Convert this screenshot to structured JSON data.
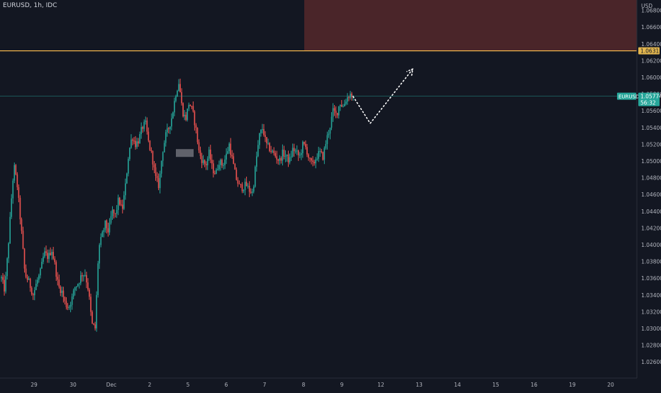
{
  "header": {
    "symbol_title": "EURUSD, 1h, IDC"
  },
  "price_axis": {
    "currency": "USD",
    "ticks": [
      "1.06800",
      "1.06600",
      "1.06400",
      "1.06200",
      "1.06000",
      "1.05800",
      "1.05600",
      "1.05400",
      "1.05200",
      "1.05000",
      "1.04800",
      "1.04600",
      "1.04400",
      "1.04200",
      "1.04000",
      "1.03800",
      "1.03600",
      "1.03400",
      "1.03200",
      "1.03000",
      "1.02800",
      "1.02600"
    ]
  },
  "time_axis": {
    "ticks": [
      "29",
      "30",
      "Dec",
      "2",
      "5",
      "6",
      "7",
      "8",
      "9",
      "12",
      "13",
      "14",
      "15",
      "16",
      "19",
      "20"
    ]
  },
  "markers": {
    "resistance_label": "1.06317",
    "current_symbol": "EURUSD",
    "current_price": "1.05774",
    "countdown": "56:32"
  },
  "colors": {
    "background": "#131722",
    "up_candle": "#26a69a",
    "down_candle": "#ef5350",
    "resistance_line": "#f0b44c",
    "supply_zone": "#4a2529",
    "price_label_bg": "#26a69a",
    "projection": "#ffffff",
    "axis_text": "#b2b5be"
  },
  "chart_data": {
    "type": "candlestick",
    "title": "EURUSD, 1h, IDC",
    "ylim": [
      1.025,
      1.07
    ],
    "resistance_level": 1.06317,
    "current_price": 1.05774,
    "supply_zone": {
      "low": 1.06317,
      "high": 1.07,
      "from_date": "Dec 8"
    },
    "consolidation_box": {
      "low": 1.05,
      "high": 1.051
    },
    "projection_path": [
      1.0577,
      1.0545,
      1.061
    ],
    "candle_count": 245,
    "price_path": [
      [
        0,
        1.036
      ],
      [
        4,
        1.0345
      ],
      [
        8,
        1.0395
      ],
      [
        12,
        1.0455
      ],
      [
        15,
        1.0495
      ],
      [
        19,
        1.047
      ],
      [
        24,
        1.0415
      ],
      [
        28,
        1.0365
      ],
      [
        33,
        1.0355
      ],
      [
        38,
        1.034
      ],
      [
        42,
        1.0355
      ],
      [
        46,
        1.0365
      ],
      [
        51,
        1.039
      ],
      [
        56,
        1.0385
      ],
      [
        60,
        1.0395
      ],
      [
        64,
        1.0375
      ],
      [
        68,
        1.035
      ],
      [
        72,
        1.0345
      ],
      [
        76,
        1.033
      ],
      [
        80,
        1.0325
      ],
      [
        84,
        1.0335
      ],
      [
        88,
        1.035
      ],
      [
        92,
        1.0355
      ],
      [
        96,
        1.0365
      ],
      [
        100,
        1.0365
      ],
      [
        104,
        1.0345
      ],
      [
        108,
        1.0305
      ],
      [
        112,
        1.03
      ],
      [
        116,
        1.0395
      ],
      [
        120,
        1.041
      ],
      [
        124,
        1.0425
      ],
      [
        128,
        1.0415
      ],
      [
        132,
        1.044
      ],
      [
        136,
        1.0435
      ],
      [
        140,
        1.0455
      ],
      [
        144,
        1.044
      ],
      [
        148,
        1.047
      ],
      [
        152,
        1.051
      ],
      [
        156,
        1.053
      ],
      [
        160,
        1.052
      ],
      [
        164,
        1.0525
      ],
      [
        168,
        1.054
      ],
      [
        172,
        1.0545
      ],
      [
        176,
        1.052
      ],
      [
        180,
        1.0505
      ],
      [
        184,
        1.048
      ],
      [
        188,
        1.047
      ],
      [
        192,
        1.051
      ],
      [
        196,
        1.053
      ],
      [
        200,
        1.054
      ],
      [
        204,
        1.0555
      ],
      [
        208,
        1.058
      ],
      [
        212,
        1.0595
      ],
      [
        216,
        1.056
      ],
      [
        220,
        1.055
      ],
      [
        224,
        1.057
      ],
      [
        228,
        1.056
      ],
      [
        232,
        1.054
      ],
      [
        236,
        1.051
      ],
      [
        240,
        1.05
      ],
      [
        244,
        1.0495
      ],
      [
        248,
        1.051
      ],
      [
        252,
        1.049
      ],
      [
        256,
        1.0485
      ],
      [
        260,
        1.05
      ],
      [
        264,
        1.0495
      ],
      [
        268,
        1.0505
      ],
      [
        272,
        1.052
      ],
      [
        276,
        1.05
      ],
      [
        280,
        1.048
      ],
      [
        284,
        1.047
      ],
      [
        288,
        1.0468
      ],
      [
        292,
        1.0472
      ],
      [
        296,
        1.0465
      ],
      [
        300,
        1.0462
      ],
      [
        304,
        1.05
      ],
      [
        308,
        1.053
      ],
      [
        312,
        1.054
      ],
      [
        316,
        1.052
      ],
      [
        320,
        1.0515
      ],
      [
        324,
        1.051
      ],
      [
        328,
        1.0505
      ],
      [
        332,
        1.05
      ],
      [
        336,
        1.051
      ],
      [
        340,
        1.0505
      ],
      [
        344,
        1.05
      ],
      [
        348,
        1.0515
      ],
      [
        352,
        1.051
      ],
      [
        356,
        1.0505
      ],
      [
        360,
        1.052
      ],
      [
        364,
        1.0515
      ],
      [
        368,
        1.05
      ],
      [
        372,
        1.0495
      ],
      [
        376,
        1.0505
      ],
      [
        380,
        1.051
      ],
      [
        384,
        1.0505
      ],
      [
        388,
        1.0525
      ],
      [
        392,
        1.054
      ],
      [
        396,
        1.056
      ],
      [
        400,
        1.0555
      ],
      [
        404,
        1.057
      ],
      [
        408,
        1.0565
      ],
      [
        412,
        1.0575
      ],
      [
        416,
        1.058
      ],
      [
        420,
        1.0577
      ]
    ]
  }
}
